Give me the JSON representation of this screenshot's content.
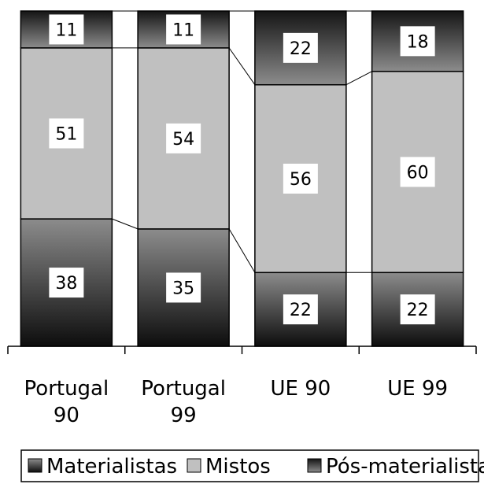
{
  "chart_data": {
    "type": "bar",
    "stacked": true,
    "normalized_percent": true,
    "categories": [
      [
        "Portugal",
        "90"
      ],
      [
        "Portugal",
        "99"
      ],
      [
        "UE 90"
      ],
      [
        "UE 99"
      ]
    ],
    "series": [
      {
        "name": "Materialistas",
        "values": [
          38,
          35,
          22,
          22
        ],
        "color": "#2b2b2b"
      },
      {
        "name": "Mistos",
        "values": [
          51,
          54,
          56,
          60
        ],
        "color": "#c0c0c0"
      },
      {
        "name": "Pós-materialistas",
        "values": [
          11,
          11,
          22,
          18
        ],
        "color": "#2b2b2b"
      }
    ],
    "ylim": [
      0,
      100
    ],
    "legend_position": "bottom",
    "series_lines": true
  }
}
